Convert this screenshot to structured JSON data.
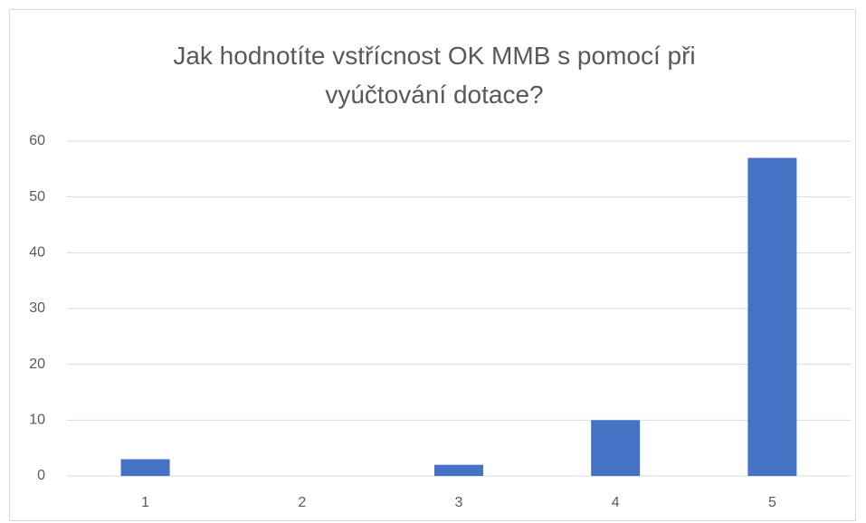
{
  "chart_data": {
    "type": "bar",
    "title": "Jak hodnotíte vstřícnost OK MMB s pomocí při vyúčtování dotace?",
    "categories": [
      "1",
      "2",
      "3",
      "4",
      "5"
    ],
    "values": [
      3,
      0,
      2,
      10,
      57
    ],
    "color": "#4472c4",
    "ylim": [
      0,
      60
    ],
    "yticks": [
      0,
      10,
      20,
      30,
      40,
      50,
      60
    ],
    "grid": true
  }
}
